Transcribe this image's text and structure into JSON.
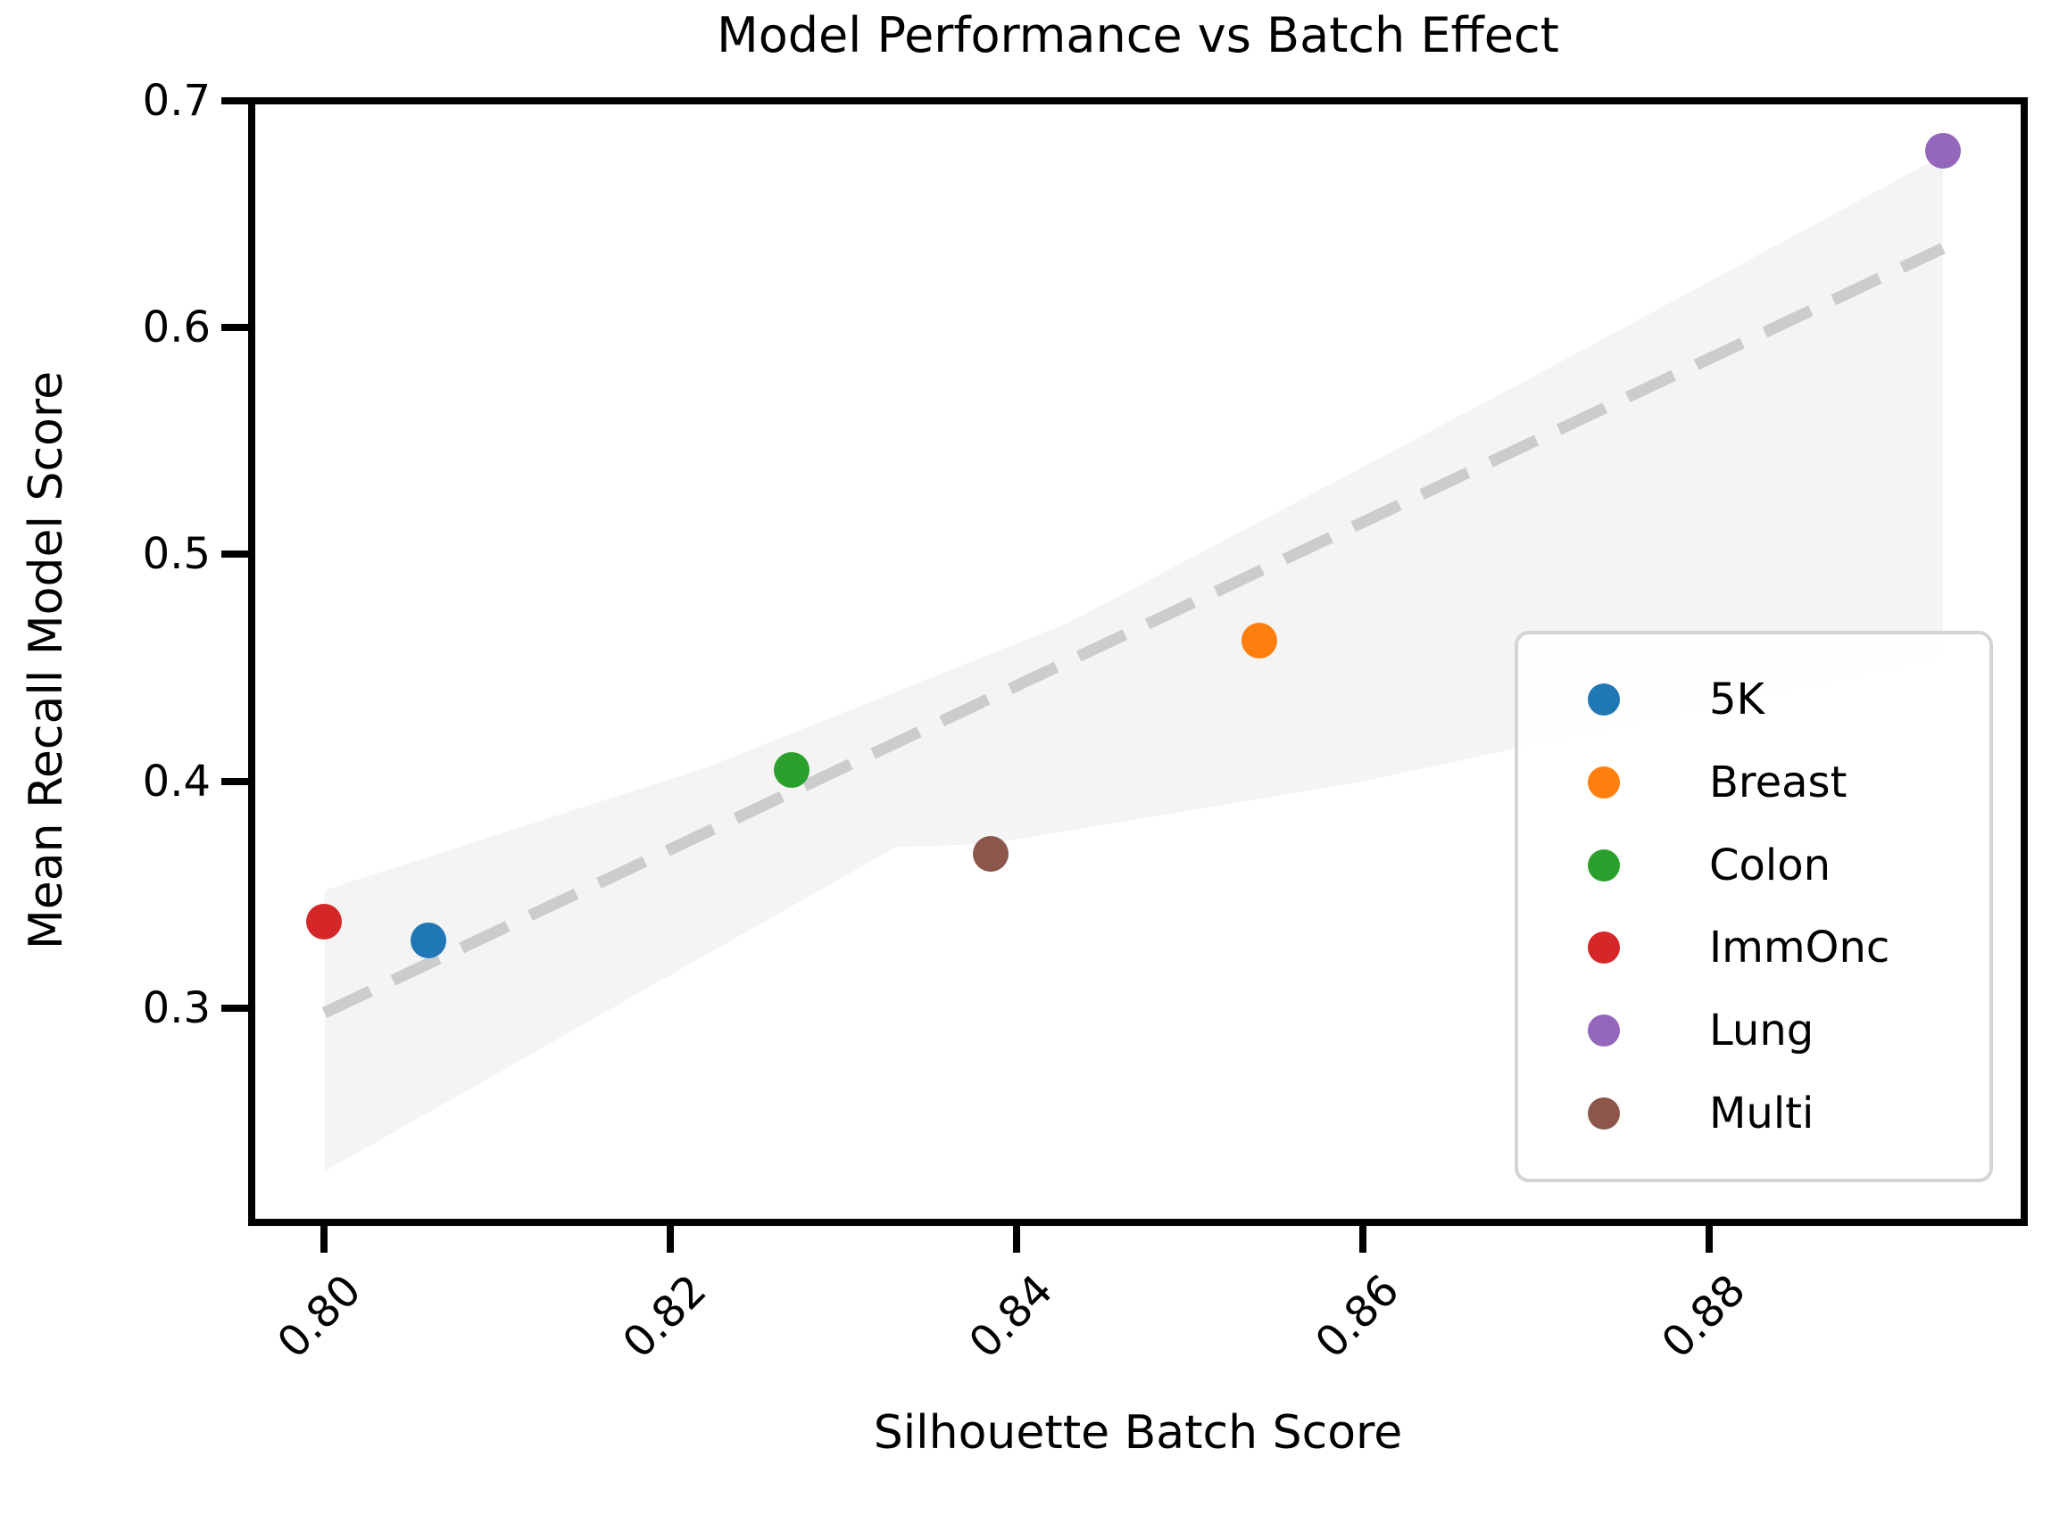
{
  "figure": {
    "background": "#ffffff",
    "spine_color": "#000000"
  },
  "chart_data": {
    "type": "scatter",
    "title": "Model Performance vs Batch Effect",
    "xlabel": "Silhouette Batch Score",
    "ylabel": "Mean Recall Model Score",
    "xlim": [
      0.7958,
      0.8982
    ],
    "ylim": [
      0.2056,
      0.7
    ],
    "x_ticks": [
      0.8,
      0.82,
      0.84,
      0.86,
      0.88
    ],
    "x_tick_labels": [
      "0.80",
      "0.82",
      "0.84",
      "0.86",
      "0.88"
    ],
    "y_ticks": [
      0.3,
      0.4,
      0.5,
      0.6,
      0.7
    ],
    "y_tick_labels": [
      "0.3",
      "0.4",
      "0.5",
      "0.6",
      "0.7"
    ],
    "grid": false,
    "legend_position": "lower right",
    "series": [
      {
        "name": "5K",
        "color": "#1f77b4",
        "points": [
          [
            0.806,
            0.33
          ]
        ]
      },
      {
        "name": "Breast",
        "color": "#ff7f0e",
        "points": [
          [
            0.854,
            0.462
          ]
        ]
      },
      {
        "name": "Colon",
        "color": "#2ca02c",
        "points": [
          [
            0.827,
            0.405
          ]
        ]
      },
      {
        "name": "ImmOnc",
        "color": "#d62728",
        "points": [
          [
            0.8,
            0.338
          ]
        ]
      },
      {
        "name": "Lung",
        "color": "#9467bd",
        "points": [
          [
            0.8935,
            0.678
          ]
        ]
      },
      {
        "name": "Multi",
        "color": "#8385e-0",
        "points": [
          [
            0.8385,
            0.368
          ]
        ]
      }
    ],
    "trend_line": {
      "style": "dashed",
      "color": "#cccccc",
      "from": [
        0.8,
        0.298
      ],
      "to": [
        0.8935,
        0.635
      ]
    },
    "confidence_band": {
      "color": "#f4f4f4",
      "polygon": [
        [
          0.8,
          0.228
        ],
        [
          0.833,
          0.371
        ],
        [
          0.8385,
          0.3725
        ],
        [
          0.86,
          0.4
        ],
        [
          0.8935,
          0.455
        ],
        [
          0.8935,
          0.676
        ],
        [
          0.869,
          0.575
        ],
        [
          0.843,
          0.47
        ],
        [
          0.822,
          0.406
        ],
        [
          0.8,
          0.352
        ]
      ]
    }
  }
}
